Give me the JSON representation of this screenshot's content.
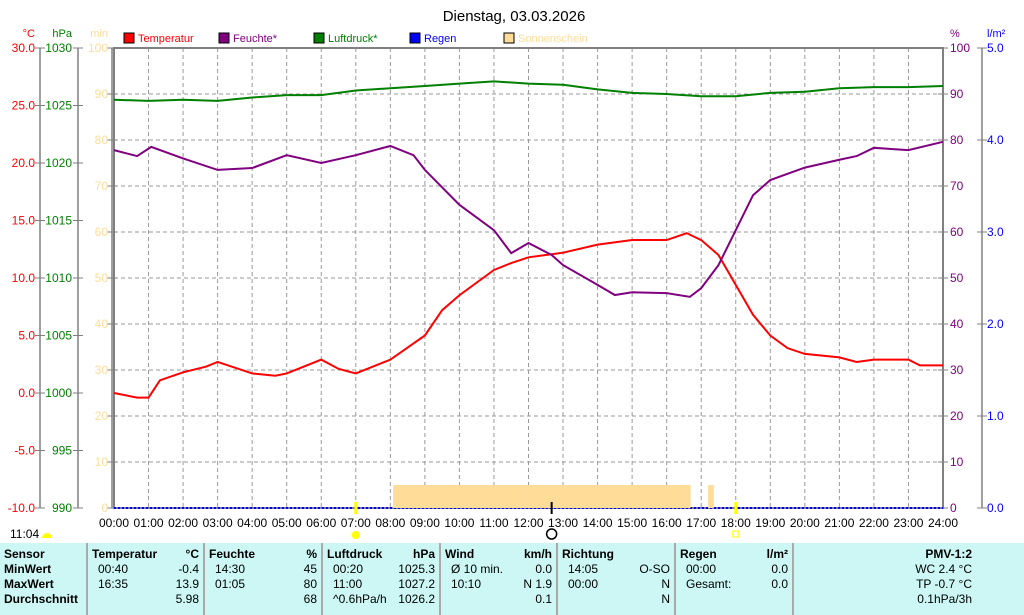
{
  "chart_data": {
    "type": "line",
    "title": "Dienstag, 03.03.2026",
    "axes": {
      "temp": {
        "label": "°C",
        "range": [
          -10,
          30
        ],
        "ticks": [
          "30.0",
          "25.0",
          "20.0",
          "15.0",
          "10.0",
          "5.0",
          "0.0",
          "-5.0",
          "-10.0"
        ],
        "color": "#ff0000"
      },
      "pressure": {
        "label": "hPa",
        "range": [
          990,
          1030
        ],
        "ticks": [
          "1030",
          "1025",
          "1020",
          "1015",
          "1010",
          "1005",
          "1000",
          "995",
          "990"
        ],
        "color": "#008000"
      },
      "sun": {
        "label": "min",
        "range": [
          0,
          100
        ],
        "ticks": [
          "100",
          "90",
          "80",
          "70",
          "60",
          "50",
          "40",
          "30",
          "20",
          "10",
          "0"
        ],
        "color": "#ffdd99"
      },
      "humidity": {
        "label": "%",
        "range": [
          0,
          100
        ],
        "ticks": [
          "100",
          "90",
          "80",
          "70",
          "60",
          "50",
          "40",
          "30",
          "20",
          "10",
          "0"
        ],
        "color": "#800080"
      },
      "rain": {
        "label": "l/m²",
        "range": [
          0,
          5
        ],
        "ticks": [
          "5.0",
          "4.0",
          "3.0",
          "2.0",
          "1.0",
          "0.0"
        ],
        "color": "#0000ff"
      }
    },
    "x_ticks": [
      "00:00",
      "01:00",
      "02:00",
      "03:00",
      "04:00",
      "05:00",
      "06:00",
      "07:00",
      "08:00",
      "09:00",
      "10:00",
      "11:00",
      "12:00",
      "13:00",
      "14:00",
      "15:00",
      "16:00",
      "17:00",
      "18:00",
      "19:00",
      "20:00",
      "21:00",
      "22:00",
      "23:00",
      "24:00"
    ],
    "legend": [
      {
        "label": "Temperatur",
        "color": "#ff0000"
      },
      {
        "label": "Feuchte*",
        "color": "#800080"
      },
      {
        "label": "Luftdruck*",
        "color": "#008000"
      },
      {
        "label": "Regen",
        "color": "#0000ff"
      },
      {
        "label": "Sonnenschein",
        "color": "#ffdd99"
      }
    ],
    "series": [
      {
        "name": "Temperatur",
        "axis": "temp",
        "x": [
          0,
          0.67,
          1,
          1.33,
          2,
          2.67,
          3,
          4,
          4.67,
          5,
          6,
          6.5,
          7,
          8,
          9,
          9.5,
          10,
          11,
          11.5,
          12,
          13,
          14,
          15,
          16,
          16.58,
          17,
          17.5,
          18,
          18.5,
          19,
          19.5,
          20,
          21,
          21.5,
          22,
          23,
          23.33,
          24
        ],
        "y": [
          0,
          -0.4,
          -0.4,
          1.1,
          1.8,
          2.3,
          2.7,
          1.7,
          1.5,
          1.7,
          2.9,
          2.1,
          1.7,
          2.9,
          5.0,
          7.2,
          8.5,
          10.7,
          11.3,
          11.8,
          12.2,
          12.9,
          13.3,
          13.3,
          13.9,
          13.3,
          12.0,
          9.4,
          6.8,
          5.0,
          3.9,
          3.4,
          3.1,
          2.7,
          2.9,
          2.9,
          2.4,
          2.4
        ]
      },
      {
        "name": "Feuchte*",
        "axis": "humidity",
        "x": [
          0,
          0.67,
          1.08,
          2,
          3,
          4,
          5,
          6,
          7,
          8,
          8.67,
          9,
          10,
          11,
          11.5,
          12,
          12.67,
          13,
          14,
          14.5,
          15,
          16,
          16.67,
          17,
          17.5,
          18,
          18.5,
          19,
          20,
          21,
          21.5,
          22,
          23,
          24
        ],
        "y": [
          77.8,
          76.5,
          78.5,
          76,
          73.5,
          73.9,
          76.7,
          75,
          76.7,
          78.7,
          76.7,
          73.5,
          65.9,
          60.4,
          55.4,
          57.6,
          55,
          52.8,
          48.5,
          46.3,
          46.9,
          46.7,
          45.9,
          47.8,
          52.8,
          60.4,
          68,
          71.3,
          74,
          75.7,
          76.5,
          78.3,
          77.8,
          79.6
        ]
      },
      {
        "name": "Luftdruck*",
        "axis": "pressure",
        "x": [
          0,
          1,
          2,
          3,
          4,
          5,
          6,
          7,
          8,
          9,
          10,
          11,
          12,
          13,
          14,
          15,
          16,
          17,
          18,
          19,
          20,
          21,
          22,
          23,
          24
        ],
        "y": [
          1025.5,
          1025.4,
          1025.5,
          1025.4,
          1025.7,
          1025.9,
          1025.9,
          1026.3,
          1026.5,
          1026.7,
          1026.9,
          1027.1,
          1026.9,
          1026.8,
          1026.4,
          1026.1,
          1026.0,
          1025.8,
          1025.8,
          1026.1,
          1026.2,
          1026.5,
          1026.6,
          1026.6,
          1026.7
        ]
      },
      {
        "name": "Regen",
        "axis": "rain",
        "x": [
          0,
          24
        ],
        "y": [
          0,
          0
        ]
      },
      {
        "name": "Sonnenschein",
        "axis": "sun",
        "bars": [
          [
            8.08,
            16.67,
            5
          ],
          [
            17.2,
            17.35,
            5
          ]
        ]
      }
    ],
    "markers": {
      "sunrise": "07:00",
      "sunset": "18:00",
      "noon": "12:40"
    },
    "grid": true
  },
  "footer": {
    "time": "11:04"
  },
  "table": {
    "sensor": {
      "title": "Sensor",
      "rows": [
        "MinWert",
        "MaxWert",
        "Durchschnitt"
      ]
    },
    "temperatur": {
      "title": "Temperatur",
      "unit": "°C",
      "rows": [
        [
          "00:40",
          "-0.4"
        ],
        [
          "16:35",
          "13.9"
        ],
        [
          "",
          "5.98"
        ]
      ]
    },
    "feuchte": {
      "title": "Feuchte",
      "unit": "%",
      "rows": [
        [
          "14:30",
          "45"
        ],
        [
          "01:05",
          "80"
        ],
        [
          "",
          "68"
        ]
      ]
    },
    "luftdruck": {
      "title": "Luftdruck",
      "unit": "hPa",
      "rows": [
        [
          "00:20",
          "1025.3"
        ],
        [
          "11:00",
          "1027.2"
        ],
        [
          "^0.6hPa/h",
          "1026.2"
        ]
      ]
    },
    "wind": {
      "title": "Wind",
      "unit": "km/h",
      "rows": [
        [
          "Ø 10 min.",
          "0.0"
        ],
        [
          "10:10",
          "N 1.9"
        ],
        [
          "",
          "0.1"
        ]
      ]
    },
    "richtung": {
      "title": "Richtung",
      "rows": [
        [
          "14:05",
          "O-SO"
        ],
        [
          "00:00",
          "N"
        ],
        [
          "",
          "N"
        ]
      ]
    },
    "regen": {
      "title": "Regen",
      "unit": "l/m²",
      "rows": [
        [
          "",
          ""
        ],
        [
          "00:00",
          "0.0"
        ],
        [
          "Gesamt:",
          "0.0"
        ]
      ]
    },
    "pmv": {
      "title": "PMV-1:2",
      "rows": [
        "WC 2.4 °C",
        "TP -0.7 °C",
        "0.1hPa/3h"
      ]
    }
  }
}
